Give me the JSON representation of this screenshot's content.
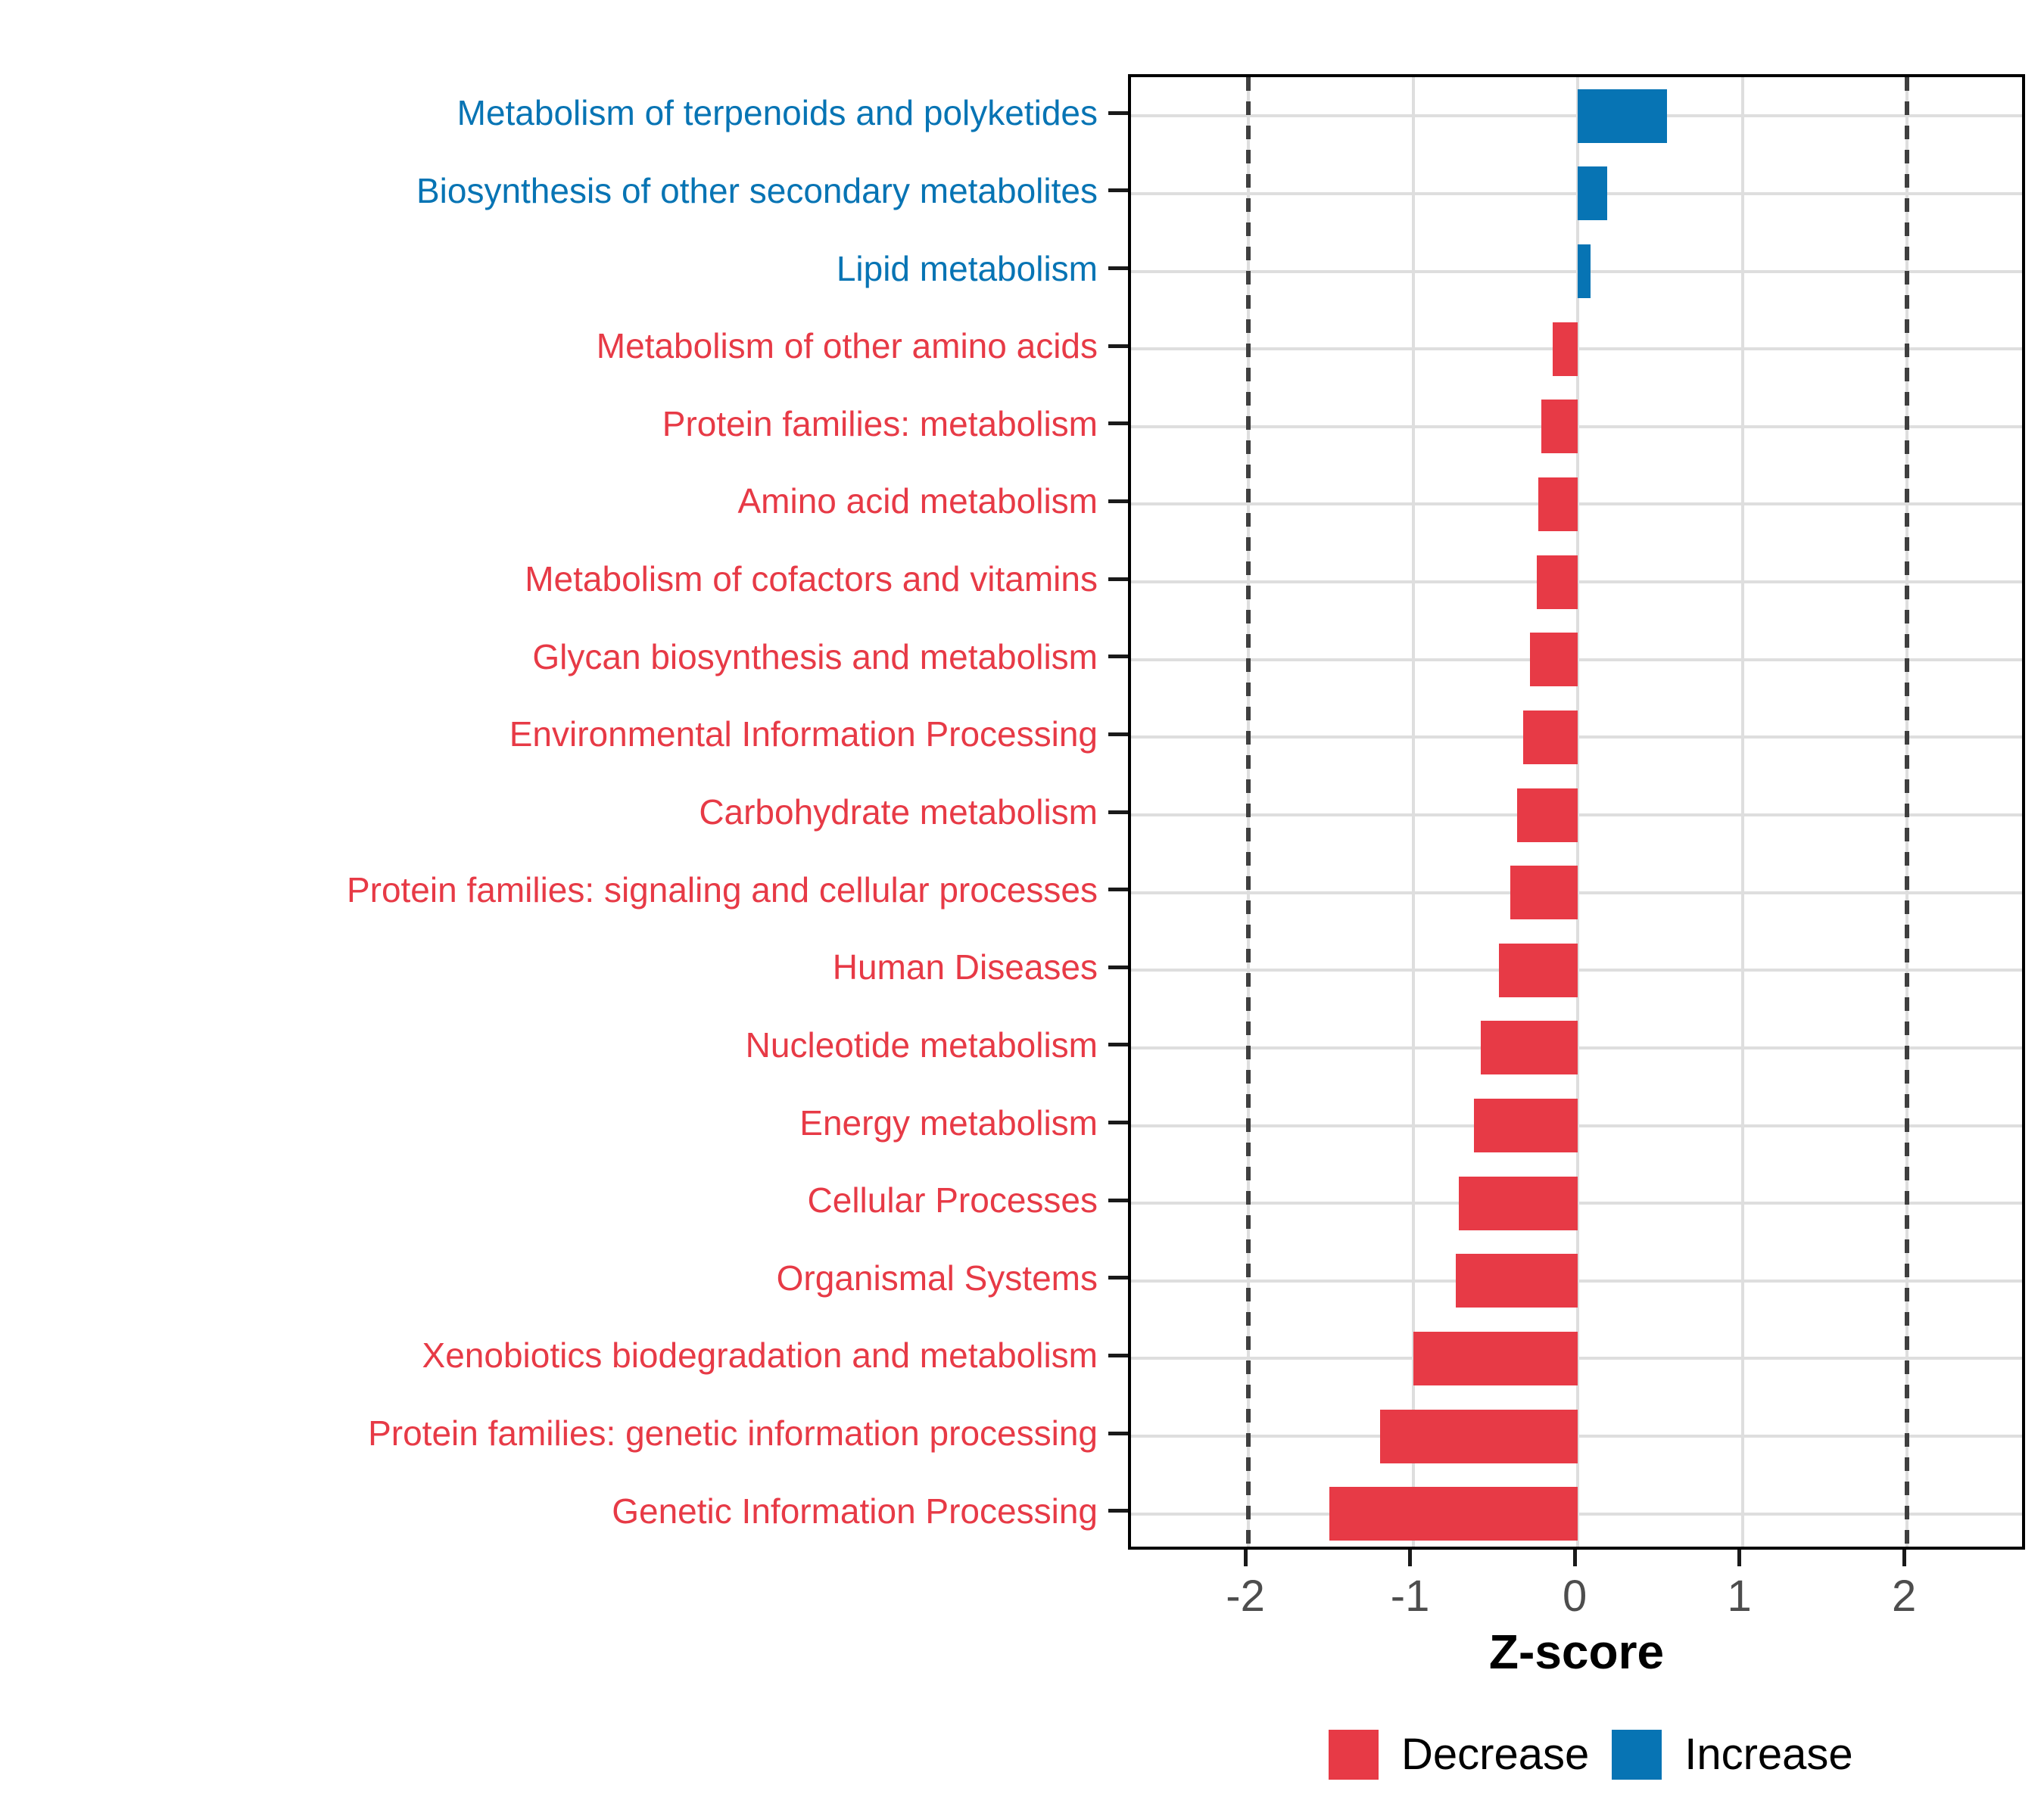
{
  "chart_data": {
    "type": "bar",
    "orientation": "horizontal",
    "title": "",
    "xlabel": "Z-score",
    "x_ticks": [
      -2,
      -1,
      0,
      1,
      2
    ],
    "xlim": [
      -2.713,
      2.735
    ],
    "reference_lines": [
      -2,
      2
    ],
    "grid": "on",
    "legend_position": "bottom",
    "categories": [
      "Metabolism of terpenoids and polyketides",
      "Biosynthesis of other secondary metabolites",
      "Lipid metabolism",
      "Metabolism of other amino acids",
      "Protein families: metabolism",
      "Amino acid metabolism",
      "Metabolism of cofactors and vitamins",
      "Glycan biosynthesis and metabolism",
      "Environmental Information Processing",
      "Carbohydrate metabolism",
      "Protein families: signaling and cellular processes",
      "Human Diseases",
      "Nucleotide metabolism",
      "Energy metabolism",
      "Cellular Processes",
      "Organismal Systems",
      "Xenobiotics biodegradation and metabolism",
      "Protein families: genetic information processing",
      "Genetic Information Processing"
    ],
    "values": [
      0.54,
      0.18,
      0.08,
      -0.15,
      -0.22,
      -0.24,
      -0.25,
      -0.29,
      -0.33,
      -0.37,
      -0.41,
      -0.48,
      -0.59,
      -0.63,
      -0.72,
      -0.74,
      -1.0,
      -1.2,
      -1.51
    ],
    "groups": [
      "Increase",
      "Increase",
      "Increase",
      "Decrease",
      "Decrease",
      "Decrease",
      "Decrease",
      "Decrease",
      "Decrease",
      "Decrease",
      "Decrease",
      "Decrease",
      "Decrease",
      "Decrease",
      "Decrease",
      "Decrease",
      "Decrease",
      "Decrease",
      "Decrease"
    ],
    "colors": {
      "Decrease": "#E73A46",
      "Increase": "#0774B4"
    }
  },
  "legend": {
    "items": [
      {
        "label": "Decrease",
        "color": "#E73A46"
      },
      {
        "label": "Increase",
        "color": "#0774B4"
      }
    ]
  },
  "style": {
    "grid_color": "#dedede",
    "reference_line_color": "#3f3f3f",
    "tick_label_color": "#4d4d4d",
    "panel_border_color": "#000000"
  }
}
